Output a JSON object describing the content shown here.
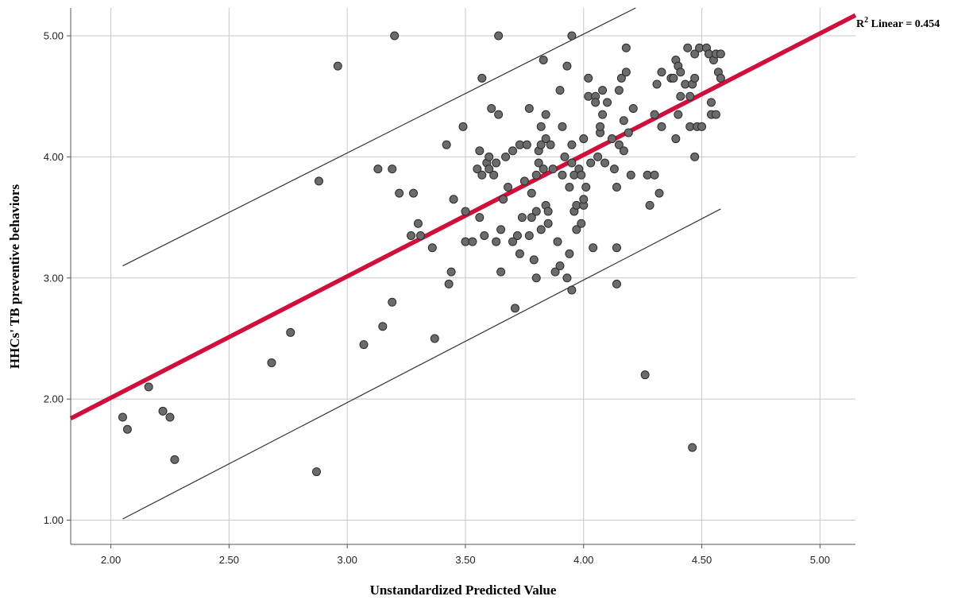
{
  "chart_data": {
    "type": "scatter",
    "xlabel": "Unstandardized Predicted Value",
    "ylabel": "HHCs' TB preventive behaviors",
    "xlim": [
      1.83,
      5.15
    ],
    "ylim": [
      0.8,
      5.23
    ],
    "xticks": [
      "2.00",
      "2.50",
      "3.00",
      "3.50",
      "4.00",
      "4.50",
      "5.00"
    ],
    "yticks": [
      "1.00",
      "2.00",
      "3.00",
      "4.00",
      "5.00"
    ],
    "grid": true,
    "fit_line": {
      "label": "R² Linear = 0.454",
      "label_prefix": "R",
      "label_sup": "2",
      "label_rest": " Linear = 0.454",
      "color": "#d0103a",
      "points": [
        [
          1.83,
          1.84
        ],
        [
          5.15,
          5.17
        ]
      ]
    },
    "prediction_interval": {
      "upper": [
        [
          2.05,
          3.1
        ],
        [
          4.22,
          5.23
        ]
      ],
      "lower": [
        [
          2.05,
          1.01
        ],
        [
          4.58,
          3.57
        ]
      ]
    },
    "marker_color": "#6b6b6b",
    "points": [
      [
        2.05,
        1.85
      ],
      [
        2.07,
        1.75
      ],
      [
        2.16,
        2.1
      ],
      [
        2.22,
        1.9
      ],
      [
        2.25,
        1.85
      ],
      [
        2.27,
        1.5
      ],
      [
        2.68,
        2.3
      ],
      [
        2.76,
        2.55
      ],
      [
        2.87,
        1.4
      ],
      [
        2.88,
        3.8
      ],
      [
        2.96,
        4.75
      ],
      [
        3.07,
        2.45
      ],
      [
        3.13,
        3.9
      ],
      [
        3.15,
        2.6
      ],
      [
        3.19,
        3.9
      ],
      [
        3.19,
        2.8
      ],
      [
        3.2,
        5.0
      ],
      [
        3.22,
        3.7
      ],
      [
        3.27,
        3.35
      ],
      [
        3.28,
        3.7
      ],
      [
        3.3,
        3.45
      ],
      [
        3.31,
        3.35
      ],
      [
        3.36,
        3.25
      ],
      [
        3.37,
        2.5
      ],
      [
        3.42,
        4.1
      ],
      [
        3.43,
        2.95
      ],
      [
        3.44,
        3.05
      ],
      [
        3.45,
        3.65
      ],
      [
        3.49,
        4.25
      ],
      [
        3.5,
        3.55
      ],
      [
        3.5,
        3.3
      ],
      [
        3.53,
        3.3
      ],
      [
        3.55,
        3.9
      ],
      [
        3.56,
        3.5
      ],
      [
        3.56,
        4.05
      ],
      [
        3.57,
        4.65
      ],
      [
        3.57,
        3.85
      ],
      [
        3.58,
        3.35
      ],
      [
        3.59,
        3.95
      ],
      [
        3.6,
        4.0
      ],
      [
        3.6,
        3.9
      ],
      [
        3.61,
        4.4
      ],
      [
        3.62,
        3.85
      ],
      [
        3.63,
        3.3
      ],
      [
        3.63,
        3.95
      ],
      [
        3.64,
        5.0
      ],
      [
        3.64,
        4.35
      ],
      [
        3.65,
        3.4
      ],
      [
        3.65,
        3.05
      ],
      [
        3.66,
        3.65
      ],
      [
        3.67,
        4.0
      ],
      [
        3.68,
        3.75
      ],
      [
        3.7,
        3.3
      ],
      [
        3.7,
        4.05
      ],
      [
        3.71,
        2.75
      ],
      [
        3.72,
        3.35
      ],
      [
        3.73,
        4.1
      ],
      [
        3.73,
        3.2
      ],
      [
        3.74,
        3.5
      ],
      [
        3.75,
        3.8
      ],
      [
        3.76,
        4.1
      ],
      [
        3.77,
        4.4
      ],
      [
        3.77,
        3.35
      ],
      [
        3.78,
        3.5
      ],
      [
        3.78,
        3.7
      ],
      [
        3.79,
        3.15
      ],
      [
        3.8,
        3.85
      ],
      [
        3.8,
        3.55
      ],
      [
        3.8,
        3.0
      ],
      [
        3.81,
        4.05
      ],
      [
        3.81,
        3.95
      ],
      [
        3.82,
        4.25
      ],
      [
        3.82,
        3.4
      ],
      [
        3.82,
        4.1
      ],
      [
        3.83,
        4.8
      ],
      [
        3.83,
        3.9
      ],
      [
        3.84,
        4.35
      ],
      [
        3.84,
        4.15
      ],
      [
        3.84,
        3.6
      ],
      [
        3.85,
        3.55
      ],
      [
        3.85,
        3.45
      ],
      [
        3.86,
        4.1
      ],
      [
        3.87,
        3.9
      ],
      [
        3.88,
        3.05
      ],
      [
        3.89,
        3.3
      ],
      [
        3.9,
        3.1
      ],
      [
        3.9,
        4.55
      ],
      [
        3.91,
        4.25
      ],
      [
        3.91,
        3.85
      ],
      [
        3.92,
        4.0
      ],
      [
        3.93,
        4.75
      ],
      [
        3.93,
        3.0
      ],
      [
        3.94,
        3.75
      ],
      [
        3.94,
        3.2
      ],
      [
        3.95,
        5.0
      ],
      [
        3.95,
        2.9
      ],
      [
        3.95,
        4.1
      ],
      [
        3.95,
        3.95
      ],
      [
        3.96,
        3.55
      ],
      [
        3.96,
        3.85
      ],
      [
        3.97,
        3.4
      ],
      [
        3.97,
        3.6
      ],
      [
        3.98,
        3.9
      ],
      [
        3.99,
        3.45
      ],
      [
        3.99,
        3.85
      ],
      [
        4.0,
        3.6
      ],
      [
        4.0,
        4.15
      ],
      [
        4.0,
        3.65
      ],
      [
        4.01,
        3.75
      ],
      [
        4.02,
        4.5
      ],
      [
        4.02,
        4.65
      ],
      [
        4.03,
        3.95
      ],
      [
        4.04,
        3.25
      ],
      [
        4.05,
        4.5
      ],
      [
        4.05,
        4.45
      ],
      [
        4.06,
        4.0
      ],
      [
        4.07,
        4.2
      ],
      [
        4.07,
        4.25
      ],
      [
        4.08,
        4.55
      ],
      [
        4.08,
        4.35
      ],
      [
        4.09,
        3.95
      ],
      [
        4.1,
        4.45
      ],
      [
        4.12,
        4.15
      ],
      [
        4.13,
        3.9
      ],
      [
        4.14,
        3.25
      ],
      [
        4.14,
        2.95
      ],
      [
        4.14,
        3.75
      ],
      [
        4.15,
        4.55
      ],
      [
        4.15,
        4.1
      ],
      [
        4.16,
        4.65
      ],
      [
        4.17,
        4.05
      ],
      [
        4.17,
        4.3
      ],
      [
        4.18,
        4.9
      ],
      [
        4.18,
        4.7
      ],
      [
        4.19,
        4.2
      ],
      [
        4.2,
        3.85
      ],
      [
        4.21,
        4.4
      ],
      [
        4.26,
        2.2
      ],
      [
        4.27,
        3.85
      ],
      [
        4.28,
        3.6
      ],
      [
        4.3,
        4.35
      ],
      [
        4.3,
        3.85
      ],
      [
        4.31,
        4.6
      ],
      [
        4.32,
        3.7
      ],
      [
        4.33,
        4.25
      ],
      [
        4.33,
        4.7
      ],
      [
        4.37,
        4.65
      ],
      [
        4.38,
        4.65
      ],
      [
        4.39,
        4.15
      ],
      [
        4.39,
        4.8
      ],
      [
        4.4,
        4.75
      ],
      [
        4.4,
        4.35
      ],
      [
        4.41,
        4.5
      ],
      [
        4.41,
        4.7
      ],
      [
        4.43,
        4.6
      ],
      [
        4.44,
        4.9
      ],
      [
        4.45,
        4.25
      ],
      [
        4.45,
        4.5
      ],
      [
        4.46,
        1.6
      ],
      [
        4.46,
        4.6
      ],
      [
        4.47,
        4.85
      ],
      [
        4.47,
        4.0
      ],
      [
        4.47,
        4.65
      ],
      [
        4.48,
        4.25
      ],
      [
        4.49,
        4.9
      ],
      [
        4.5,
        4.25
      ],
      [
        4.52,
        4.9
      ],
      [
        4.53,
        4.85
      ],
      [
        4.54,
        4.45
      ],
      [
        4.54,
        4.35
      ],
      [
        4.55,
        4.8
      ],
      [
        4.56,
        4.85
      ],
      [
        4.56,
        4.35
      ],
      [
        4.57,
        4.7
      ],
      [
        4.58,
        4.85
      ],
      [
        4.58,
        4.65
      ]
    ]
  }
}
